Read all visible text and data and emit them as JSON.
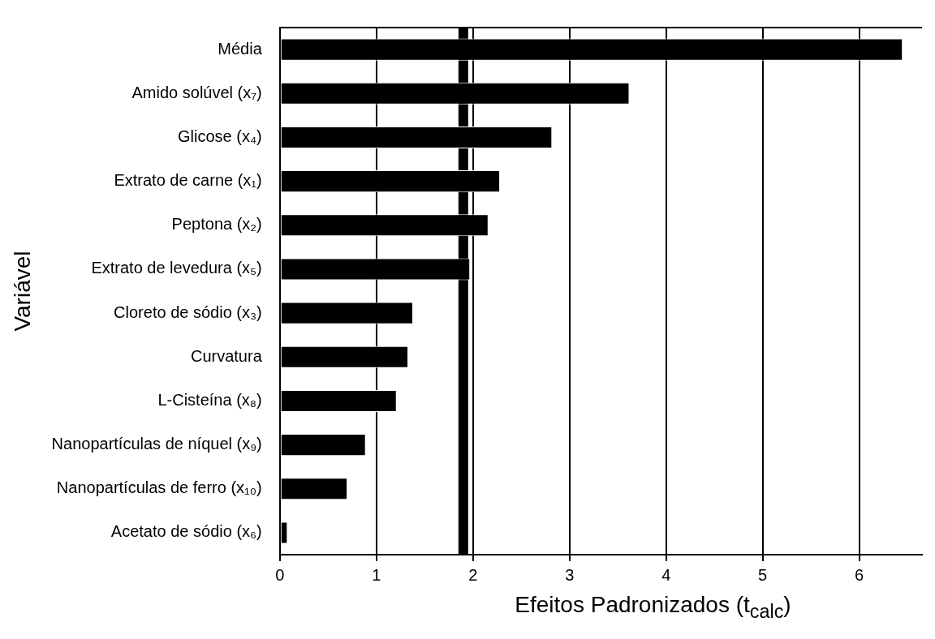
{
  "chart_data": {
    "type": "bar",
    "orientation": "horizontal",
    "xlabel": "Efeitos Padronizados (t$_{calc}$)",
    "ylabel": "Variável",
    "categories": [
      "Média",
      "Amido solúvel (x₇)",
      "Glicose (x₄)",
      "Extrato de carne (x₁)",
      "Peptona (x₂)",
      "Extrato de levedura (x₅)",
      "Cloreto de sódio (x₃)",
      "Curvatura",
      "L-Cisteína (x₈)",
      "Nanopartículas de níquel (x₉)",
      "Nanopartículas de ferro (x₁₀)",
      "Acetato de sódio (x₆)"
    ],
    "values": [
      6.45,
      3.62,
      2.82,
      2.28,
      2.16,
      1.97,
      1.38,
      1.33,
      1.21,
      0.89,
      0.7,
      0.08
    ],
    "color": "#000000",
    "xlim": [
      0,
      6.65
    ],
    "xticks": [
      0,
      1,
      2,
      3,
      4,
      5,
      6
    ],
    "grid": "x",
    "legend": false,
    "ref_lines": [
      {
        "axis": "x",
        "value": 1.9,
        "color": "#000000"
      }
    ]
  }
}
